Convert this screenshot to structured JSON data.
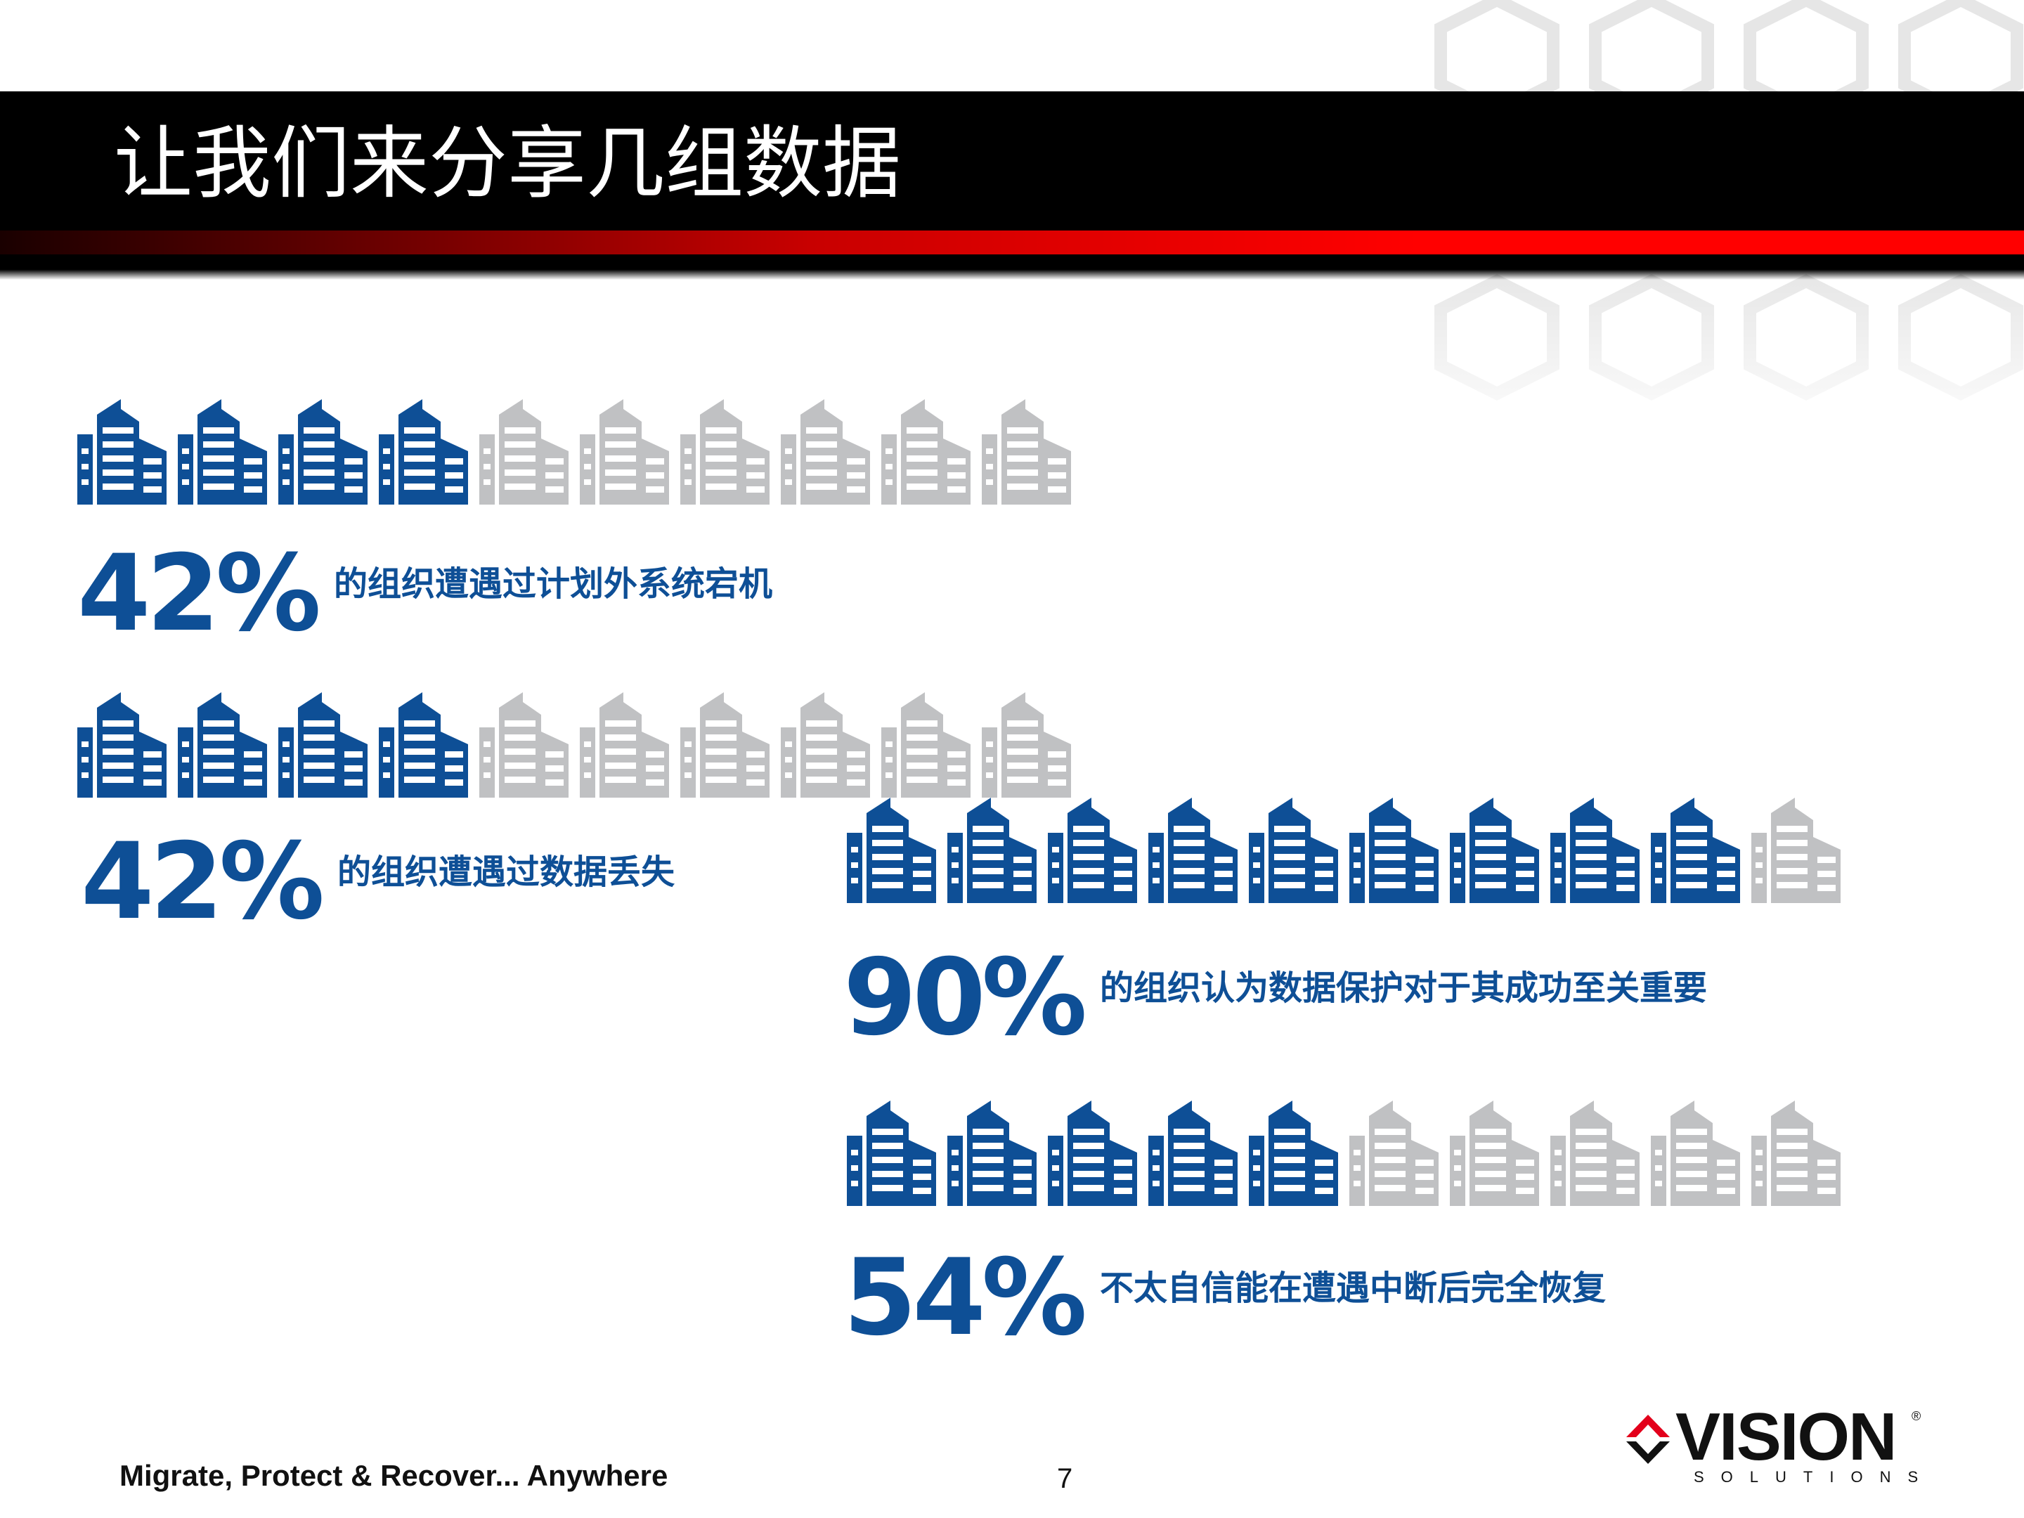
{
  "slide": {
    "title": "让我们来分享几组数据",
    "footer_tagline": "Migrate, Protect & Recover... Anywhere",
    "page_number": "7"
  },
  "colors": {
    "filled": "#0e4f96",
    "empty": "#c0c1c3",
    "title_bar": "#000000",
    "accent_red": "#ff0000"
  },
  "stats": [
    {
      "percent": "42%",
      "filled": 4,
      "total": 10,
      "text": "的组织遭遇过计划外系统宕机"
    },
    {
      "percent": "42%",
      "filled": 4,
      "total": 10,
      "text": "的组织遭遇过数据丢失"
    },
    {
      "percent": "90%",
      "filled": 9,
      "total": 10,
      "text": "的组织认为数据保护对于其成功至关重要"
    },
    {
      "percent": "54%",
      "filled": 5,
      "total": 10,
      "text": "不太自信能在遭遇中断后完全恢复"
    }
  ],
  "logo": {
    "wordmark": "VISION",
    "subtext": "SOLUTIONS",
    "registered": "®",
    "icon": "diamond-arrows-icon"
  }
}
